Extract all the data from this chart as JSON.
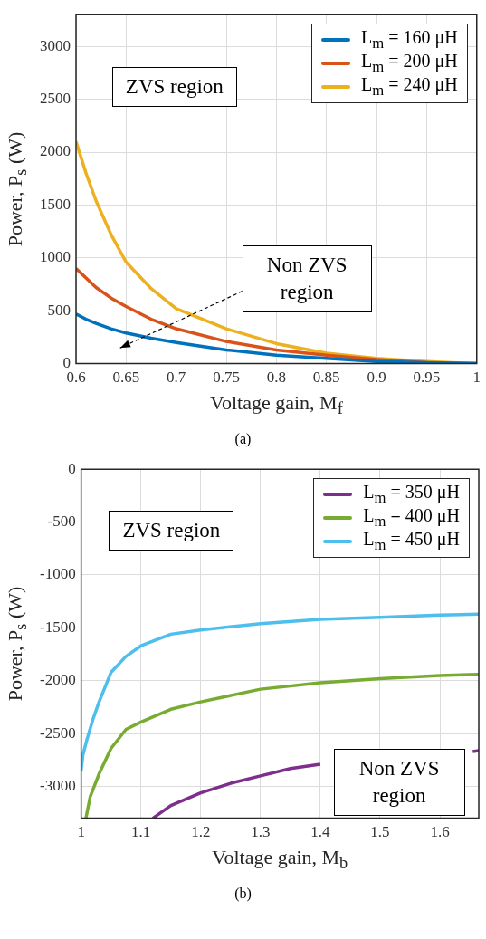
{
  "chart_data": [
    {
      "type": "line",
      "xlabel": "Voltage gain, M$_{f}$",
      "ylabel": "Power, P$_{s}$ (W)",
      "xlim": [
        0.6,
        1
      ],
      "xticks": [
        0.6,
        0.65,
        0.7,
        0.75,
        0.8,
        0.85,
        0.9,
        0.95,
        1
      ],
      "ylim": [
        0,
        3300
      ],
      "yticks": [
        0,
        500,
        1000,
        1500,
        2000,
        2500,
        3000
      ],
      "grid": true,
      "legend": "top right",
      "series": [
        {
          "name": "L$_{m}$ = 160 μH",
          "color": "#0072bd",
          "x": [
            0.6,
            0.61,
            0.62,
            0.635,
            0.65,
            0.675,
            0.7,
            0.75,
            0.8,
            0.85,
            0.9,
            0.95,
            1
          ],
          "values": [
            470,
            420,
            380,
            330,
            290,
            240,
            200,
            130,
            80,
            50,
            20,
            10,
            0
          ]
        },
        {
          "name": "L$_{m}$ = 200 μH",
          "color": "#d95319",
          "x": [
            0.6,
            0.61,
            0.62,
            0.635,
            0.65,
            0.675,
            0.7,
            0.75,
            0.8,
            0.85,
            0.9,
            0.95,
            1
          ],
          "values": [
            900,
            810,
            720,
            620,
            540,
            420,
            330,
            210,
            130,
            80,
            40,
            10,
            0
          ]
        },
        {
          "name": "L$_{m}$ = 240 μH",
          "color": "#edb120",
          "x": [
            0.6,
            0.61,
            0.62,
            0.635,
            0.65,
            0.675,
            0.7,
            0.75,
            0.8,
            0.85,
            0.9,
            0.95,
            1
          ],
          "values": [
            2100,
            1800,
            1540,
            1220,
            960,
            710,
            520,
            330,
            190,
            100,
            50,
            20,
            0
          ]
        }
      ],
      "annotations": [
        "ZVS region",
        "Non ZVS region",
        "(a)"
      ]
    },
    {
      "type": "line",
      "xlabel": "Voltage gain, M$_{b}$",
      "ylabel": "Power, P$_{s}$ (W)",
      "xlim": [
        1,
        1.665
      ],
      "xticks": [
        1,
        1.1,
        1.2,
        1.3,
        1.4,
        1.5,
        1.6
      ],
      "ylim": [
        -3300,
        0
      ],
      "yticks": [
        -3000,
        -2500,
        -2000,
        -1500,
        -1000,
        -500,
        0
      ],
      "grid": true,
      "legend": "top right",
      "series": [
        {
          "name": "L$_{m}$ = 350 μH",
          "color": "#7e2f8e",
          "x": [
            1.12,
            1.15,
            1.2,
            1.25,
            1.3,
            1.35,
            1.4,
            1.5,
            1.6,
            1.655,
            1.665
          ],
          "values": [
            -3300,
            -3180,
            -3060,
            -2970,
            -2900,
            -2830,
            -2790,
            null,
            null,
            -2670,
            -2660
          ]
        },
        {
          "name": "L$_{m}$ = 400 μH",
          "color": "#77ac30",
          "x": [
            1.008,
            1.015,
            1.03,
            1.05,
            1.075,
            1.1,
            1.15,
            1.2,
            1.3,
            1.4,
            1.5,
            1.6,
            1.665
          ],
          "values": [
            -3300,
            -3100,
            -2880,
            -2640,
            -2460,
            -2390,
            -2270,
            -2200,
            -2080,
            -2020,
            -1980,
            -1950,
            -1940
          ]
        },
        {
          "name": "L$_{m}$ = 450 μH",
          "color": "#4dbeee",
          "x": [
            1,
            1.003,
            1.01,
            1.02,
            1.03,
            1.05,
            1.075,
            1.1,
            1.15,
            1.2,
            1.3,
            1.4,
            1.5,
            1.6,
            1.665
          ],
          "values": [
            -2850,
            -2700,
            -2550,
            -2360,
            -2200,
            -1920,
            -1770,
            -1670,
            -1560,
            -1520,
            -1460,
            -1420,
            -1400,
            -1380,
            -1370
          ]
        }
      ],
      "annotations": [
        "ZVS region",
        "Non ZVS region",
        "(b)"
      ]
    }
  ]
}
